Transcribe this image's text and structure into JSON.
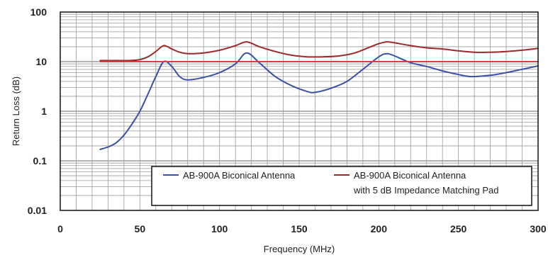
{
  "chart_data": {
    "type": "line",
    "title": "",
    "xlabel": "Frequency (MHz)",
    "ylabel": "Return Loss (dB)",
    "x_scale": "linear",
    "y_scale": "log",
    "xlim": [
      0,
      300
    ],
    "ylim": [
      0.01,
      100
    ],
    "x_ticks": [
      0,
      50,
      100,
      150,
      200,
      250,
      300
    ],
    "x_tick_labels": [
      "0",
      "50",
      "100",
      "150",
      "200",
      "250",
      "300"
    ],
    "y_ticks": [
      0.01,
      0.1,
      1,
      10,
      100
    ],
    "y_tick_labels": [
      "0.01",
      "0.1",
      "1",
      "10",
      "100"
    ],
    "grid": true,
    "legend_position": "bottom-right",
    "series": [
      {
        "name": "AB-900A Biconical Antenna",
        "color": "#3b4fa8",
        "x": [
          25,
          30,
          35,
          40,
          45,
          50,
          55,
          60,
          65,
          70,
          75,
          80,
          90,
          100,
          110,
          117,
          125,
          135,
          145,
          155,
          160,
          170,
          180,
          190,
          200,
          205,
          210,
          220,
          230,
          240,
          250,
          258,
          270,
          280,
          290,
          300
        ],
        "y": [
          0.17,
          0.19,
          0.23,
          0.33,
          0.55,
          1.0,
          2.2,
          5.0,
          10.0,
          8.0,
          5.0,
          4.3,
          4.8,
          6.0,
          9.0,
          15.0,
          9.5,
          5.0,
          3.3,
          2.5,
          2.4,
          2.9,
          4.0,
          7.0,
          12.5,
          14.5,
          13.0,
          9.5,
          8.0,
          6.5,
          5.5,
          5.0,
          5.3,
          6.0,
          7.0,
          8.2
        ]
      },
      {
        "name": "AB-900A Biconical Antenna with 5 dB Impedance Matching Pad",
        "color": "#9b2a2a",
        "x": [
          25,
          35,
          45,
          50,
          55,
          60,
          65,
          70,
          75,
          80,
          90,
          100,
          110,
          117,
          125,
          135,
          145,
          155,
          165,
          175,
          185,
          195,
          200,
          205,
          210,
          220,
          230,
          240,
          250,
          260,
          270,
          280,
          290,
          300
        ],
        "y": [
          10.5,
          10.5,
          10.6,
          11.0,
          12.5,
          16.0,
          21.0,
          18.0,
          15.5,
          14.5,
          15.0,
          17.0,
          21.0,
          25.0,
          20.0,
          16.0,
          13.5,
          12.5,
          12.5,
          13.0,
          15.0,
          20.0,
          23.0,
          25.0,
          24.0,
          21.0,
          19.0,
          18.0,
          16.5,
          15.5,
          15.5,
          16.0,
          17.0,
          18.5
        ]
      },
      {
        "name": "",
        "color": "#e23b3b",
        "x": [
          25,
          300
        ],
        "y": [
          10,
          10
        ]
      }
    ],
    "legend": {
      "entry1": "AB-900A Biconical Antenna",
      "entry2_line1": "AB-900A Biconical Antenna",
      "entry2_line2": "with 5 dB Impedance Matching Pad"
    }
  }
}
